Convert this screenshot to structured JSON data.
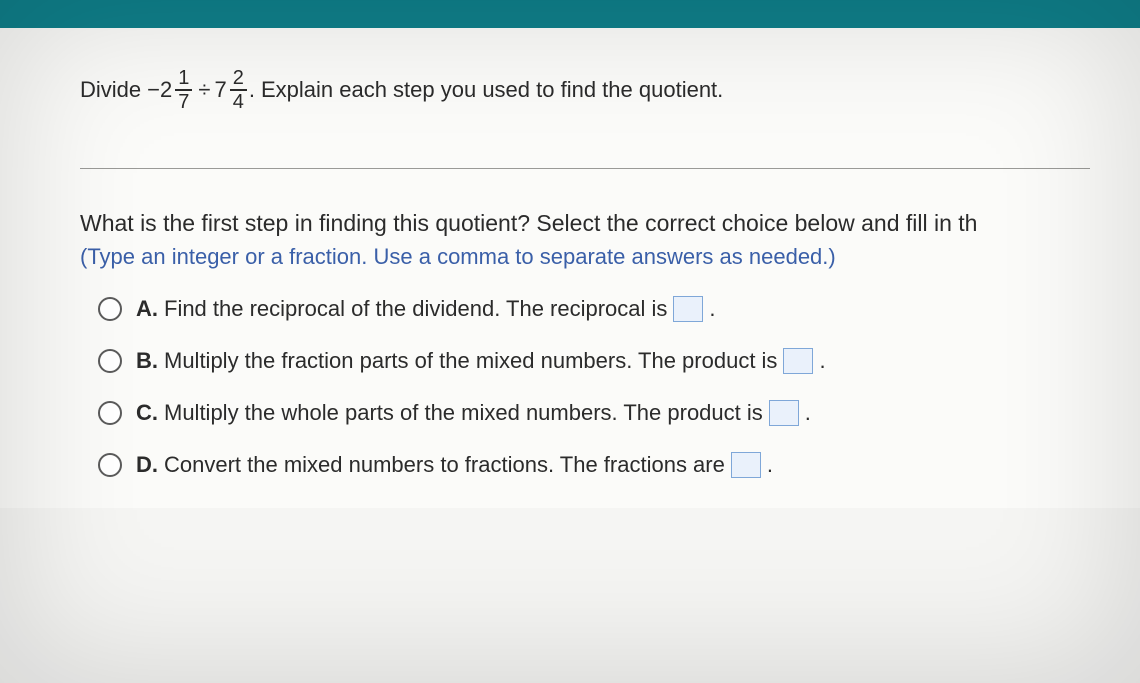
{
  "colors": {
    "top_bar": "#0f7f8a",
    "page_bg": "#fbfbf9",
    "body_bg": "#d8d6d2",
    "text": "#2b2b2b",
    "hint": "#3a5fa8",
    "blank_border": "#7fa7d8",
    "blank_fill": "#eaf1fb",
    "divider": "#9a9a97"
  },
  "problem": {
    "prefix": "Divide",
    "neg": "−",
    "m1_whole": "2",
    "m1_num": "1",
    "m1_den": "7",
    "op": "÷",
    "m2_whole": "7",
    "m2_num": "2",
    "m2_den": "4",
    "period": ".",
    "suffix": "Explain each step you used to find the quotient."
  },
  "question": {
    "line1": "What is the first step in finding this quotient? Select the correct choice below and fill in th",
    "hint": "(Type an integer or a fraction. Use a comma to separate answers as needed.)"
  },
  "choices": {
    "a": {
      "letter": "A.",
      "pre": "Find the reciprocal of the dividend. The reciprocal is",
      "post": "."
    },
    "b": {
      "letter": "B.",
      "pre": "Multiply the fraction parts of the mixed numbers. The product is",
      "post": "."
    },
    "c": {
      "letter": "C.",
      "pre": "Multiply the whole parts of the mixed numbers. The product is",
      "post": "."
    },
    "d": {
      "letter": "D.",
      "pre": "Convert the mixed numbers to fractions. The fractions are",
      "post": "."
    }
  }
}
